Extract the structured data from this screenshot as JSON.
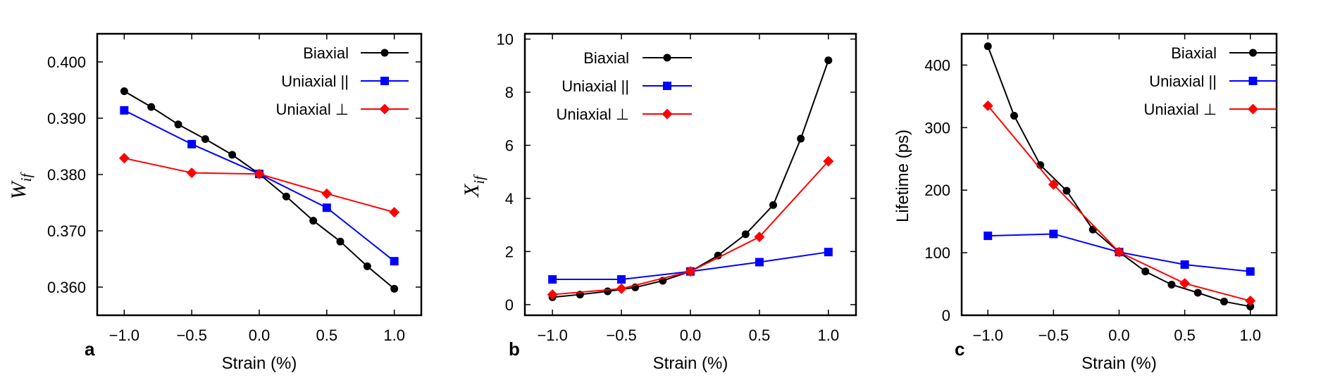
{
  "chart_data": [
    {
      "type": "line",
      "panel": "a",
      "xlabel": "Strain (%)",
      "ylabel": "W",
      "ylabel_sub": "if",
      "xlim": [
        -1.2,
        1.2
      ],
      "ylim": [
        0.355,
        0.405
      ],
      "xticks": [
        -1.0,
        -0.5,
        0.0,
        0.5,
        1.0
      ],
      "xtick_labels": [
        "−1.0",
        "−0.5",
        "0.0",
        "0.5",
        "1.0"
      ],
      "yticks": [
        0.36,
        0.37,
        0.38,
        0.39,
        0.4
      ],
      "ytick_labels": [
        "0.360",
        "0.370",
        "0.380",
        "0.390",
        "0.400"
      ],
      "legend_position": "top-right",
      "series": [
        {
          "name": "Biaxial",
          "color": "#000000",
          "marker": "circle",
          "x": [
            -1.0,
            -0.8,
            -0.6,
            -0.4,
            -0.2,
            0.0,
            0.2,
            0.4,
            0.6,
            0.8,
            1.0
          ],
          "y": [
            0.3948,
            0.392,
            0.3889,
            0.3863,
            0.3835,
            0.3801,
            0.3761,
            0.3718,
            0.3681,
            0.3637,
            0.3597
          ]
        },
        {
          "name": "Uniaxial ||",
          "color": "#0000ff",
          "marker": "square",
          "x": [
            -1.0,
            -0.5,
            0.0,
            0.5,
            1.0
          ],
          "y": [
            0.3914,
            0.3854,
            0.3801,
            0.3741,
            0.3646
          ]
        },
        {
          "name": "Uniaxial ⊥",
          "color": "#ff0000",
          "marker": "diamond",
          "x": [
            -1.0,
            -0.5,
            0.0,
            0.5,
            1.0
          ],
          "y": [
            0.3829,
            0.3803,
            0.3801,
            0.3766,
            0.3733
          ]
        }
      ]
    },
    {
      "type": "line",
      "panel": "b",
      "xlabel": "Strain (%)",
      "ylabel": "X",
      "ylabel_sub": "if",
      "xlim": [
        -1.2,
        1.2
      ],
      "ylim": [
        -0.4,
        10.2
      ],
      "xticks": [
        -1.0,
        -0.5,
        0.0,
        0.5,
        1.0
      ],
      "xtick_labels": [
        "−1.0",
        "−0.5",
        "0.0",
        "0.5",
        "1.0"
      ],
      "yticks": [
        0,
        2,
        4,
        6,
        8,
        10
      ],
      "ytick_labels": [
        "0",
        "2",
        "4",
        "6",
        "8",
        "10"
      ],
      "legend_position": "top-left",
      "series": [
        {
          "name": "Biaxial",
          "color": "#000000",
          "marker": "circle",
          "x": [
            -1.0,
            -0.8,
            -0.6,
            -0.4,
            -0.2,
            0.0,
            0.2,
            0.4,
            0.6,
            0.8,
            1.0
          ],
          "y": [
            0.28,
            0.38,
            0.5,
            0.65,
            0.9,
            1.25,
            1.85,
            2.65,
            3.75,
            6.25,
            9.2
          ]
        },
        {
          "name": "Uniaxial ||",
          "color": "#0000ff",
          "marker": "square",
          "x": [
            -1.0,
            -0.5,
            0.0,
            0.5,
            1.0
          ],
          "y": [
            0.95,
            0.95,
            1.25,
            1.6,
            1.98
          ]
        },
        {
          "name": "Uniaxial ⊥",
          "color": "#ff0000",
          "marker": "diamond",
          "x": [
            -1.0,
            -0.5,
            0.0,
            0.5,
            1.0
          ],
          "y": [
            0.38,
            0.6,
            1.25,
            2.55,
            5.4
          ]
        }
      ]
    },
    {
      "type": "line",
      "panel": "c",
      "xlabel": "Strain (%)",
      "ylabel": "Lifetime (ps)",
      "xlim": [
        -1.2,
        1.2
      ],
      "ylim": [
        0,
        450
      ],
      "xticks": [
        -1.0,
        -0.5,
        0.0,
        0.5,
        1.0
      ],
      "xtick_labels": [
        "−1.0",
        "−0.5",
        "0.0",
        "0.5",
        "1.0"
      ],
      "yticks": [
        0,
        100,
        200,
        300,
        400
      ],
      "ytick_labels": [
        "0",
        "100",
        "200",
        "300",
        "400"
      ],
      "legend_position": "top-right",
      "series": [
        {
          "name": "Biaxial",
          "color": "#000000",
          "marker": "circle",
          "x": [
            -1.0,
            -0.8,
            -0.6,
            -0.4,
            -0.2,
            0.0,
            0.2,
            0.4,
            0.6,
            0.8,
            1.0
          ],
          "y": [
            430,
            319,
            240,
            199,
            137,
            101,
            70,
            49,
            36,
            22,
            14
          ]
        },
        {
          "name": "Uniaxial ||",
          "color": "#0000ff",
          "marker": "square",
          "x": [
            -1.0,
            -0.5,
            0.0,
            0.5,
            1.0
          ],
          "y": [
            127,
            130,
            101,
            81,
            70
          ]
        },
        {
          "name": "Uniaxial ⊥",
          "color": "#ff0000",
          "marker": "diamond",
          "x": [
            -1.0,
            -0.5,
            0.0,
            0.5,
            1.0
          ],
          "y": [
            335,
            209,
            101,
            51,
            23
          ]
        }
      ]
    }
  ]
}
